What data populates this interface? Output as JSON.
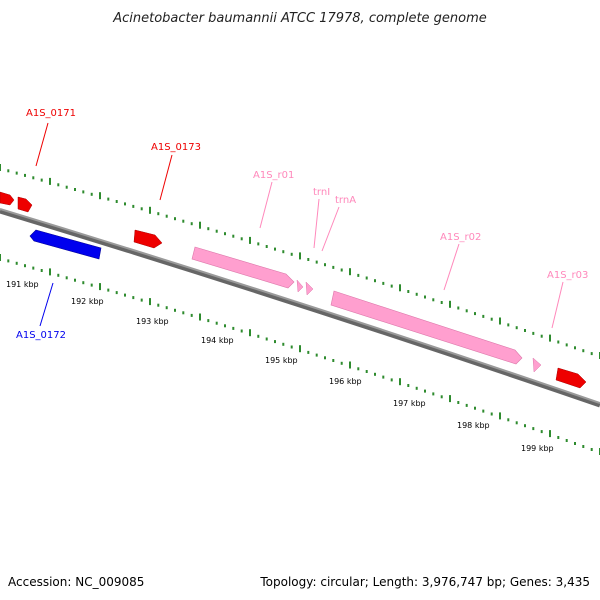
{
  "title": "Acinetobacter baumannii ATCC 17978, complete genome",
  "footer": {
    "accession": "Accession: NC_009085",
    "summary": "Topology: circular; Length: 3,976,747 bp; Genes: 3,435"
  },
  "colors": {
    "backbone": "#888888",
    "tick": "#2e8b2e",
    "forward_gene": "#ee0000",
    "reverse_gene": "#0000ee",
    "rna_gene": "#ff9fcf",
    "rna_label": "#ff88bb"
  },
  "genes": [
    {
      "id": "A1S_0171",
      "label": "A1S_0171",
      "type": "cds",
      "strand": "+"
    },
    {
      "id": "A1S_0172",
      "label": "A1S_0172",
      "type": "cds",
      "strand": "-"
    },
    {
      "id": "A1S_0173",
      "label": "A1S_0173",
      "type": "cds",
      "strand": "+"
    },
    {
      "id": "A1S_r01",
      "label": "A1S_r01",
      "type": "rRNA",
      "strand": "+"
    },
    {
      "id": "trnI",
      "label": "trnI",
      "type": "tRNA",
      "strand": "+"
    },
    {
      "id": "trnA",
      "label": "trnA",
      "type": "tRNA",
      "strand": "+"
    },
    {
      "id": "A1S_r02",
      "label": "A1S_r02",
      "type": "rRNA",
      "strand": "+"
    },
    {
      "id": "A1S_r03",
      "label": "A1S_r03",
      "type": "rRNA",
      "strand": "+"
    }
  ],
  "scale": {
    "unit": "kbp",
    "labels": [
      "191 kbp",
      "192 kbp",
      "193 kbp",
      "194 kbp",
      "195 kbp",
      "196 kbp",
      "197 kbp",
      "198 kbp",
      "199 kbp"
    ]
  }
}
